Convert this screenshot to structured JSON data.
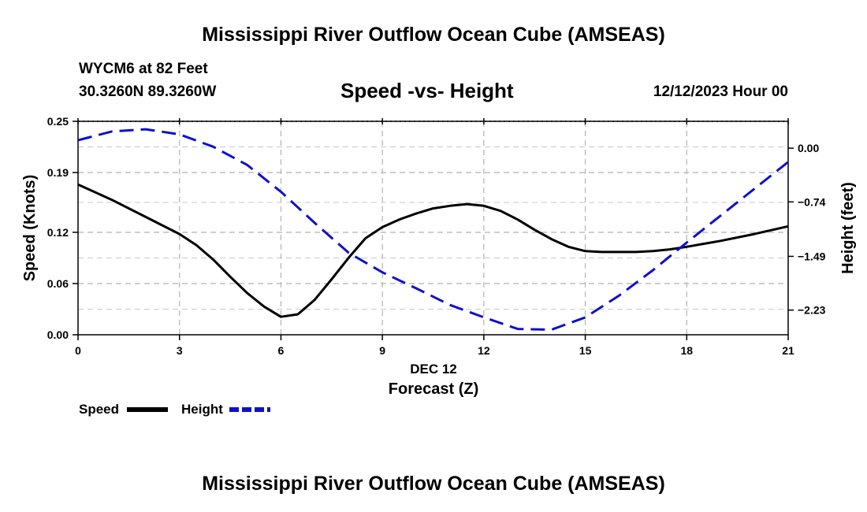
{
  "page": {
    "title": "Mississippi River Outflow Ocean Cube (AMSEAS)",
    "station": "WYCM6 at 82 Feet",
    "coords": "30.3260N  89.3260W",
    "subtitle": "Speed -vs- Height",
    "datetime": "12/12/2023 Hour 00",
    "bottom_title": "Mississippi River Outflow Ocean Cube (AMSEAS)"
  },
  "chart_data": {
    "type": "line",
    "title": "Speed -vs- Height",
    "xlabel": "Forecast (Z)",
    "xlabel_date": "DEC 12",
    "ylabel": "Speed (Knots)",
    "y2label": "Height (feet)",
    "xlim": [
      0,
      21
    ],
    "ylim": [
      0,
      0.25
    ],
    "y2lim": [
      -2.57,
      0.37
    ],
    "x_ticks": [
      "0",
      "3",
      "6",
      "9",
      "12",
      "15",
      "18",
      "21"
    ],
    "y_ticks": [
      "0.00",
      "0.06",
      "0.12",
      "0.19",
      "0.25"
    ],
    "y2_ticks": [
      "0.00",
      "-0.74",
      "-1.49",
      "-2.23"
    ],
    "grid": true,
    "legend": [
      {
        "name": "Speed",
        "color": "#000000",
        "dash": "solid"
      },
      {
        "name": "Height",
        "color": "#1010cc",
        "dash": "dashed"
      }
    ],
    "series": [
      {
        "name": "Speed",
        "axis": "left",
        "color": "#000000",
        "x": [
          0,
          1,
          2,
          3,
          3.5,
          4,
          4.5,
          5,
          5.5,
          6,
          6.5,
          7,
          7.5,
          8,
          8.5,
          9,
          9.5,
          10,
          10.5,
          11,
          11.5,
          12,
          12.5,
          13,
          13.5,
          14,
          14.5,
          15,
          15.5,
          16,
          16.5,
          17,
          17.5,
          18,
          19,
          20,
          21
        ],
        "y": [
          0.176,
          0.158,
          0.138,
          0.118,
          0.105,
          0.088,
          0.068,
          0.049,
          0.033,
          0.021,
          0.024,
          0.041,
          0.065,
          0.09,
          0.113,
          0.126,
          0.135,
          0.142,
          0.148,
          0.151,
          0.153,
          0.151,
          0.145,
          0.135,
          0.123,
          0.112,
          0.103,
          0.098,
          0.097,
          0.097,
          0.097,
          0.098,
          0.1,
          0.103,
          0.11,
          0.118,
          0.127
        ]
      },
      {
        "name": "Height",
        "axis": "right",
        "color": "#1010cc",
        "x": [
          0,
          1,
          2,
          3,
          4,
          5,
          6,
          7,
          8,
          9,
          10,
          11,
          12,
          13,
          14,
          15,
          16,
          17,
          18,
          19,
          20,
          21
        ],
        "y": [
          0.11,
          0.23,
          0.26,
          0.19,
          0.02,
          -0.23,
          -0.6,
          -1.03,
          -1.44,
          -1.71,
          -1.93,
          -2.16,
          -2.33,
          -2.49,
          -2.5,
          -2.33,
          -2.03,
          -1.68,
          -1.3,
          -0.93,
          -0.56,
          -0.19
        ]
      }
    ]
  }
}
